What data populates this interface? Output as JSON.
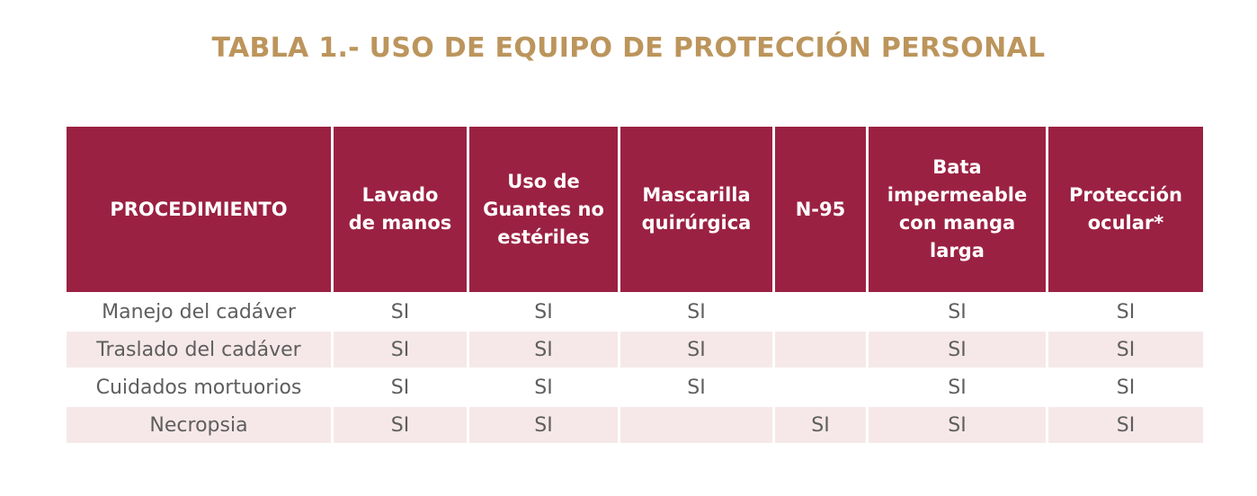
{
  "title": "TABLA 1.- USO DE EQUIPO DE PROTECCIÓN PERSONAL",
  "table": {
    "headers": [
      [
        "PROCEDIMIENTO"
      ],
      [
        "Lavado",
        "de manos"
      ],
      [
        "Uso de",
        "Guantes no",
        "estériles"
      ],
      [
        "Mascarilla",
        "quirúrgica"
      ],
      [
        "N-95"
      ],
      [
        "Bata",
        "impermeable",
        "con manga",
        "larga"
      ],
      [
        "Protección",
        "ocular*"
      ]
    ],
    "rows": [
      [
        "Manejo del cadáver",
        "SI",
        "SI",
        "SI",
        "",
        "SI",
        "SI"
      ],
      [
        "Traslado del cadáver",
        "SI",
        "SI",
        "SI",
        "",
        "SI",
        "SI"
      ],
      [
        "Cuidados mortuorios",
        "SI",
        "SI",
        "SI",
        "",
        "SI",
        "SI"
      ],
      [
        "Necropsia",
        "SI",
        "SI",
        "",
        "SI",
        "SI",
        "SI"
      ]
    ]
  },
  "colors": {
    "title": "#BC955C",
    "header_bg": "#9B2142",
    "header_text": "#FFFFFF",
    "row_alt_bg": "#F6E8E9",
    "cell_text": "#5E5E5E"
  }
}
